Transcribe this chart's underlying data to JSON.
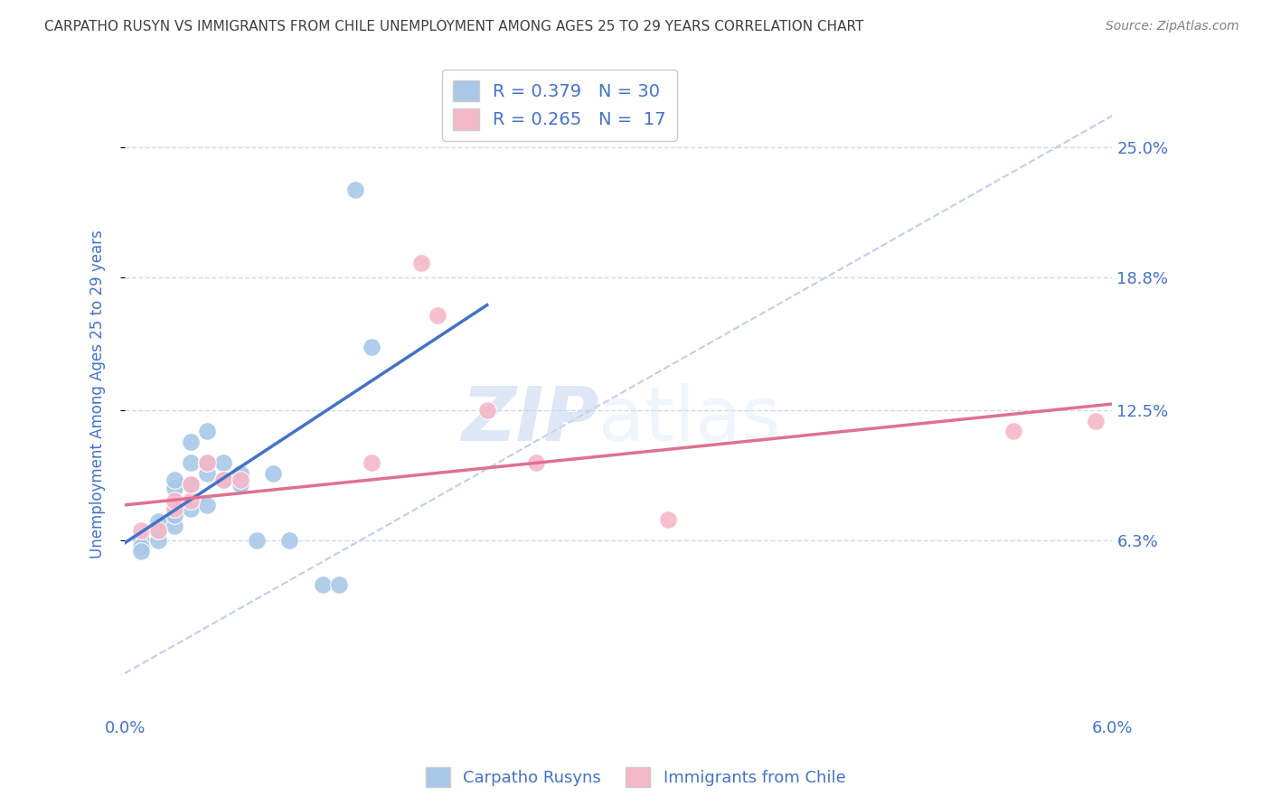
{
  "title": "CARPATHO RUSYN VS IMMIGRANTS FROM CHILE UNEMPLOYMENT AMONG AGES 25 TO 29 YEARS CORRELATION CHART",
  "source": "Source: ZipAtlas.com",
  "ylabel": "Unemployment Among Ages 25 to 29 years",
  "xlim": [
    0.0,
    0.06
  ],
  "ylim": [
    -0.02,
    0.285
  ],
  "ytick_values": [
    0.063,
    0.125,
    0.188,
    0.25
  ],
  "ytick_labels": [
    "6.3%",
    "12.5%",
    "18.8%",
    "25.0%"
  ],
  "blue_color": "#a8c8e8",
  "pink_color": "#f4b8c8",
  "blue_line_color": "#4472c4",
  "pink_line_color": "#e07090",
  "dashed_line_color": "#c0cfe8",
  "legend_R1": "R = 0.379",
  "legend_N1": "N = 30",
  "legend_R2": "R = 0.265",
  "legend_N2": "N =  17",
  "legend_label1": "Carpatho Rusyns",
  "legend_label2": "Immigrants from Chile",
  "watermark_zip": "ZIP",
  "watermark_atlas": "atlas",
  "blue_dots": [
    [
      0.001,
      0.063
    ],
    [
      0.001,
      0.06
    ],
    [
      0.001,
      0.058
    ],
    [
      0.002,
      0.063
    ],
    [
      0.002,
      0.068
    ],
    [
      0.002,
      0.072
    ],
    [
      0.003,
      0.07
    ],
    [
      0.003,
      0.075
    ],
    [
      0.003,
      0.08
    ],
    [
      0.003,
      0.088
    ],
    [
      0.003,
      0.092
    ],
    [
      0.004,
      0.078
    ],
    [
      0.004,
      0.09
    ],
    [
      0.004,
      0.1
    ],
    [
      0.004,
      0.11
    ],
    [
      0.005,
      0.08
    ],
    [
      0.005,
      0.095
    ],
    [
      0.005,
      0.1
    ],
    [
      0.005,
      0.115
    ],
    [
      0.006,
      0.092
    ],
    [
      0.006,
      0.1
    ],
    [
      0.007,
      0.09
    ],
    [
      0.007,
      0.095
    ],
    [
      0.008,
      0.063
    ],
    [
      0.009,
      0.095
    ],
    [
      0.01,
      0.063
    ],
    [
      0.012,
      0.042
    ],
    [
      0.013,
      0.042
    ],
    [
      0.015,
      0.155
    ],
    [
      0.014,
      0.23
    ]
  ],
  "pink_dots": [
    [
      0.001,
      0.068
    ],
    [
      0.002,
      0.068
    ],
    [
      0.003,
      0.078
    ],
    [
      0.003,
      0.082
    ],
    [
      0.004,
      0.082
    ],
    [
      0.004,
      0.09
    ],
    [
      0.005,
      0.1
    ],
    [
      0.006,
      0.092
    ],
    [
      0.007,
      0.092
    ],
    [
      0.015,
      0.1
    ],
    [
      0.018,
      0.195
    ],
    [
      0.019,
      0.17
    ],
    [
      0.022,
      0.125
    ],
    [
      0.025,
      0.1
    ],
    [
      0.033,
      0.073
    ],
    [
      0.054,
      0.115
    ],
    [
      0.059,
      0.12
    ]
  ],
  "blue_trend_x": [
    0.0,
    0.022
  ],
  "blue_trend_y": [
    0.062,
    0.175
  ],
  "pink_trend_x": [
    0.0,
    0.06
  ],
  "pink_trend_y": [
    0.08,
    0.128
  ],
  "dashed_trend_x": [
    0.0,
    0.06
  ],
  "dashed_trend_y": [
    0.0,
    0.265
  ],
  "background_color": "#ffffff",
  "grid_color": "#d0d8e8",
  "title_color": "#404040",
  "axis_label_color": "#4472c4",
  "tick_label_color": "#4472c4",
  "source_color": "#808080"
}
